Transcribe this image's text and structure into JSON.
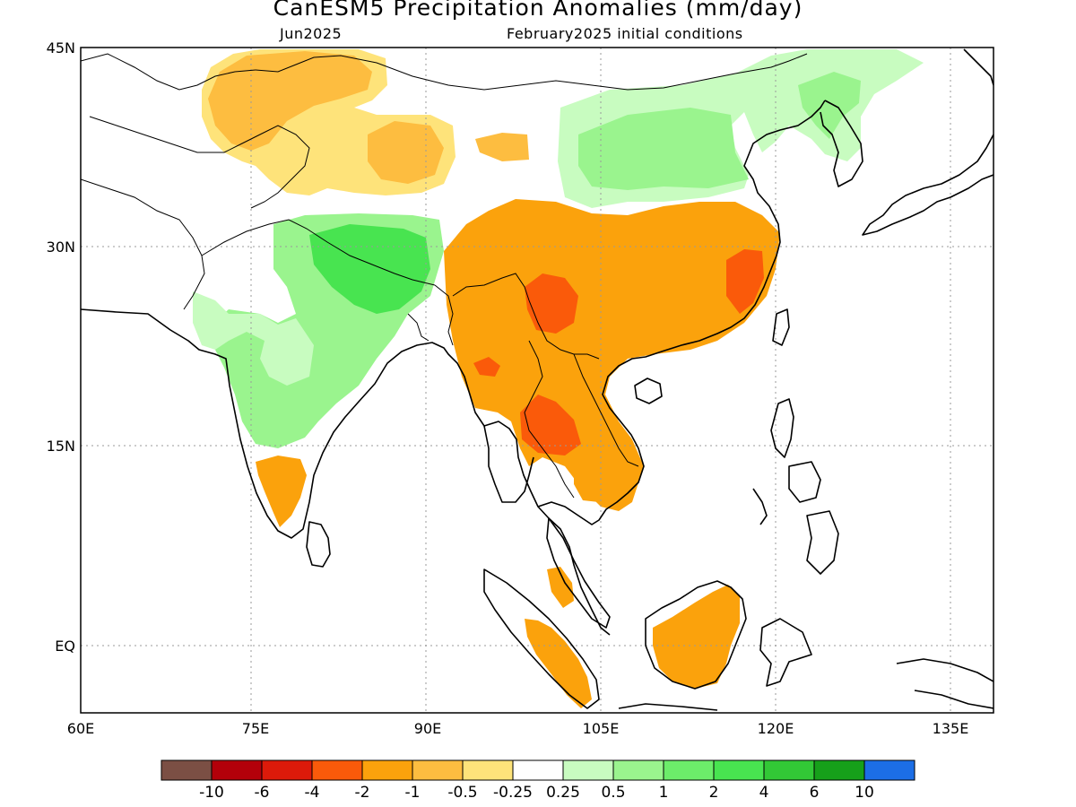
{
  "title": "CanESM5 Precipitation Anomalies (mm/day)",
  "valid_month": "Jun2025",
  "init_conditions": "February2025 initial conditions",
  "lon_ticks": [
    "60E",
    "75E",
    "90E",
    "105E",
    "120E",
    "135E"
  ],
  "lat_ticks": [
    "45N",
    "30N",
    "15N",
    "EQ"
  ],
  "colorbar": {
    "labels": [
      "-10",
      "-6",
      "-4",
      "-2",
      "-1",
      "-0.5",
      "-0.25",
      "0.25",
      "0.5",
      "1",
      "2",
      "4",
      "6",
      "10"
    ],
    "colors": [
      "#7b4f44",
      "#b3000a",
      "#dc1a0a",
      "#fa5a0a",
      "#fba20c",
      "#fdbd40",
      "#fee37a",
      "#ffffff",
      "#c8fcc0",
      "#9af48e",
      "#6ced6a",
      "#48e450",
      "#32c836",
      "#16a01a",
      "#1c6ee6"
    ]
  },
  "anomaly_regions": [
    {
      "name": "northwest-dry",
      "color": "#fee37a"
    },
    {
      "name": "northwest-dry-core",
      "color": "#fdbd40"
    },
    {
      "name": "tibet-dry",
      "color": "#fdbd40"
    },
    {
      "name": "north-china-wet",
      "color": "#c8fcc0"
    },
    {
      "name": "north-china-wet-core",
      "color": "#9af48e"
    },
    {
      "name": "himalaya-wet",
      "color": "#9af48e"
    },
    {
      "name": "himalaya-wet-core",
      "color": "#48e450"
    },
    {
      "name": "india-wet",
      "color": "#c8fcc0"
    },
    {
      "name": "south-china-dry",
      "color": "#fba20c"
    },
    {
      "name": "south-china-dry-core",
      "color": "#fa5a0a"
    },
    {
      "name": "indochina-dry",
      "color": "#fba20c"
    },
    {
      "name": "borneo-dry",
      "color": "#fba20c"
    },
    {
      "name": "sumatra-dry",
      "color": "#fba20c"
    },
    {
      "name": "south-india-dry",
      "color": "#fba20c"
    }
  ]
}
